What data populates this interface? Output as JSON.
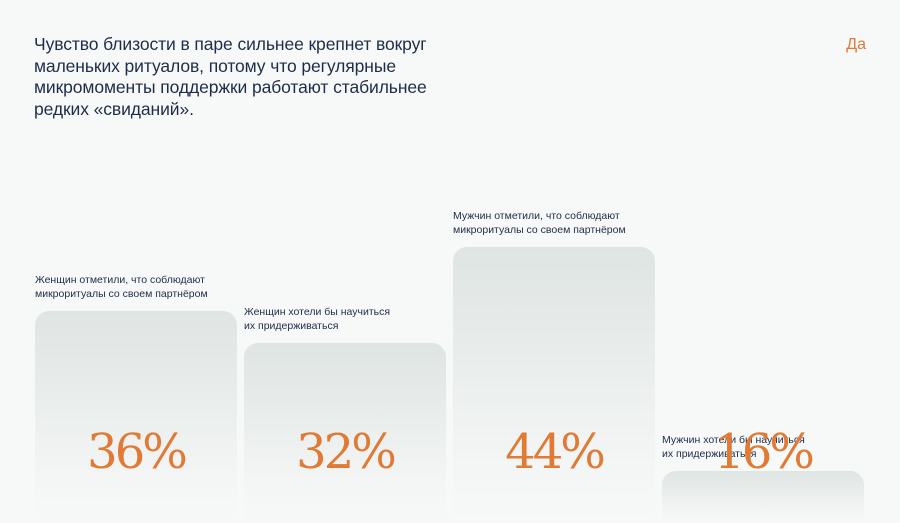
{
  "headline": "Чувство близости в паре сильнее крепнет вокруг маленьких ритуалов, потому что регулярные микромоменты поддержки работают стабильнее редких «свиданий».",
  "answer_tag": "Да",
  "colors": {
    "accent": "#e07a35",
    "text": "#1f2d4a",
    "bar_top": "#dfe5e3",
    "background": "#f7f8f8"
  },
  "chart_data": {
    "type": "bar",
    "categories": [
      "Женщин отметили, что соблюдают микроритуалы со своем партнёром",
      "Женщин хотели бы научиться их придерживаться",
      "Мужчин отметили, что соблюдают микроритуалы со своем партнёром",
      "Мужчин хотели бы научиться их придерживаться"
    ],
    "values": [
      36,
      32,
      44,
      16
    ],
    "value_labels": [
      "36%",
      "32%",
      "44%",
      "16%"
    ],
    "unit": "%",
    "title": "",
    "xlabel": "",
    "ylabel": "",
    "grid": false
  }
}
